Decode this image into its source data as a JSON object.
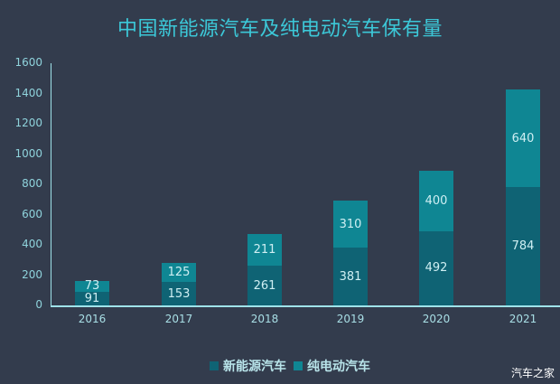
{
  "title": "中国新能源汽车及纯电动汽车保有量",
  "chart_data": {
    "type": "bar",
    "stacked": true,
    "title": "中国新能源汽车及纯电动汽车保有量",
    "xlabel": "",
    "ylabel": "",
    "ylim": [
      0,
      1600
    ],
    "yticks": [
      0,
      200,
      400,
      600,
      800,
      1000,
      1200,
      1400,
      1600
    ],
    "categories": [
      "2016",
      "2017",
      "2018",
      "2019",
      "2020",
      "2021"
    ],
    "series": [
      {
        "name": "新能源汽车",
        "color": "#0f6374",
        "values": [
          91,
          153,
          261,
          381,
          492,
          784
        ]
      },
      {
        "name": "纯电动汽车",
        "color": "#0f8693",
        "values": [
          73,
          125,
          211,
          310,
          400,
          640
        ]
      }
    ],
    "grid": false,
    "legend_position": "bottom"
  },
  "yticks": [
    "1600",
    "1400",
    "1200",
    "1000",
    "800",
    "600",
    "400",
    "200",
    "0"
  ],
  "legend": {
    "items": [
      {
        "label": "新能源汽车",
        "color": "#0f6374"
      },
      {
        "label": "纯电动汽车",
        "color": "#0f8693"
      }
    ]
  },
  "watermark": "汽车之家"
}
